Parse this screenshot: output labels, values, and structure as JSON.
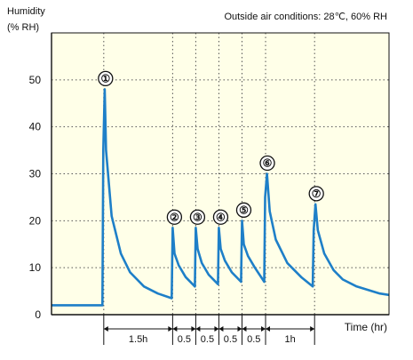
{
  "chart_data": {
    "type": "line",
    "ylabel_line1": "Humidity",
    "ylabel_line2": "(% RH)",
    "xlabel": "Time (hr)",
    "annotation": "Outside air conditions: 28℃, 60% RH",
    "ylim": [
      0,
      60
    ],
    "yticks": [
      0,
      10,
      20,
      30,
      40,
      50
    ],
    "grid": true,
    "colors": {
      "plot_bg": "#ffffe8",
      "line": "#1e7fc8",
      "grid": "#555555"
    },
    "phase_lengths_hr": [
      1.5,
      0.5,
      0.5,
      0.5,
      0.5,
      1
    ],
    "intervals": [
      "1.5h",
      "0.5",
      "0.5",
      "0.5",
      "0.5",
      "1h"
    ],
    "events": [
      {
        "label": "①",
        "peak": 48
      },
      {
        "label": "②",
        "peak": 18.5
      },
      {
        "label": "③",
        "peak": 18.5
      },
      {
        "label": "④",
        "peak": 18.5
      },
      {
        "label": "⑤",
        "peak": 20
      },
      {
        "label": "⑥",
        "peak": 30
      },
      {
        "label": "⑦",
        "peak": 23.5
      }
    ],
    "baseline_before_first": 2,
    "series": [
      {
        "points": [
          [
            0,
            2
          ],
          [
            1.1,
            2
          ],
          [
            1.12,
            35
          ],
          [
            1.15,
            48
          ],
          [
            1.18,
            35
          ],
          [
            1.3,
            21
          ],
          [
            1.5,
            13
          ],
          [
            1.7,
            9
          ],
          [
            2.0,
            6
          ],
          [
            2.3,
            4.5
          ],
          [
            2.6,
            3.5
          ],
          [
            2.62,
            18.5
          ],
          [
            2.66,
            13
          ],
          [
            2.75,
            10.5
          ],
          [
            2.9,
            8
          ],
          [
            3.1,
            6
          ],
          [
            3.12,
            18.5
          ],
          [
            3.16,
            14
          ],
          [
            3.25,
            11
          ],
          [
            3.4,
            8.5
          ],
          [
            3.6,
            6.5
          ],
          [
            3.62,
            18.5
          ],
          [
            3.66,
            14
          ],
          [
            3.75,
            11.5
          ],
          [
            3.9,
            9
          ],
          [
            4.1,
            7
          ],
          [
            4.12,
            20
          ],
          [
            4.16,
            15
          ],
          [
            4.25,
            12.5
          ],
          [
            4.4,
            10
          ],
          [
            4.6,
            7
          ],
          [
            4.62,
            25
          ],
          [
            4.66,
            30
          ],
          [
            4.72,
            22
          ],
          [
            4.85,
            16
          ],
          [
            5.1,
            11
          ],
          [
            5.4,
            8
          ],
          [
            5.65,
            6
          ],
          [
            5.67,
            18
          ],
          [
            5.71,
            23.5
          ],
          [
            5.76,
            18
          ],
          [
            5.9,
            13
          ],
          [
            6.1,
            9.5
          ],
          [
            6.3,
            7.5
          ],
          [
            6.6,
            6
          ],
          [
            7.1,
            4.5
          ],
          [
            7.3,
            4.2
          ]
        ]
      }
    ],
    "xlim": [
      0,
      7.3
    ]
  }
}
